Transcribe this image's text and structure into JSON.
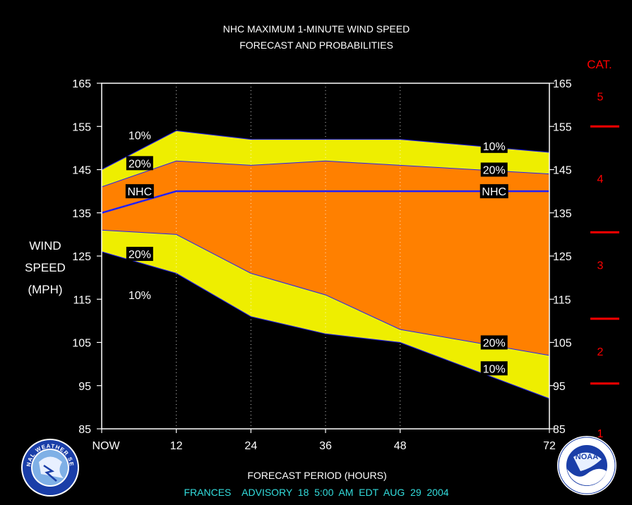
{
  "title_line1": "NHC MAXIMUM 1-MINUTE WIND SPEED",
  "title_line2": "FORECAST AND PROBABILITIES",
  "ylabel_lines": [
    "WIND",
    "SPEED",
    "(MPH)"
  ],
  "xlabel": "FORECAST PERIOD (HOURS)",
  "advisory_line": "FRANCES    ADVISORY  18  5:00  AM  EDT  AUG  29  2004",
  "cat_header": "CAT.",
  "nws_logo_text": "NATIONAL WEATHER SERVICE",
  "noaa_logo_text": "NOAA",
  "colors": {
    "background": "#000000",
    "plot_border": "#ffffff",
    "band_10pct": "#eeee00",
    "band_20pct": "#ff8000",
    "nhc_line": "#2020ff",
    "category_markers": "#ff0000",
    "advisory_text": "#33dddd"
  },
  "chart_data": {
    "type": "area",
    "x": [
      0,
      12,
      24,
      36,
      48,
      72
    ],
    "x_tick_labels": [
      "NOW",
      "12",
      "24",
      "36",
      "48",
      "72"
    ],
    "xlim": [
      0,
      72
    ],
    "ylim": [
      85,
      165
    ],
    "y_ticks": [
      85,
      95,
      105,
      115,
      125,
      135,
      145,
      155,
      165
    ],
    "grid": "vertical dotted at 12, 24, 36, 48",
    "series": [
      {
        "name": "10%",
        "role": "upper",
        "values": [
          145,
          154,
          152,
          152,
          152,
          149
        ]
      },
      {
        "name": "20%",
        "role": "upper",
        "values": [
          141,
          147,
          146,
          147,
          146,
          144
        ]
      },
      {
        "name": "NHC",
        "values": [
          135,
          140,
          140,
          140,
          140,
          140
        ]
      },
      {
        "name": "20%",
        "role": "lower",
        "values": [
          131,
          130,
          121,
          116,
          108,
          102
        ]
      },
      {
        "name": "10%",
        "role": "lower",
        "values": [
          126,
          121,
          111,
          107,
          105,
          92
        ]
      }
    ],
    "line_labels": [
      {
        "text": "10%",
        "series": 0,
        "x": 6,
        "y": 153
      },
      {
        "text": "20%",
        "series": 1,
        "x": 6,
        "y": 146.5
      },
      {
        "text": "NHC",
        "series": 2,
        "x": 6,
        "y": 140
      },
      {
        "text": "20%",
        "series": 3,
        "x": 6,
        "y": 125.5
      },
      {
        "text": "10%",
        "series": 4,
        "x": 6,
        "y": 116
      },
      {
        "text": "10%",
        "series": 0,
        "x": 63,
        "y": 150.5
      },
      {
        "text": "20%",
        "series": 1,
        "x": 63,
        "y": 145
      },
      {
        "text": "NHC",
        "series": 2,
        "x": 63,
        "y": 140
      },
      {
        "text": "20%",
        "series": 3,
        "x": 63,
        "y": 105
      },
      {
        "text": "10%",
        "series": 4,
        "x": 63,
        "y": 99
      }
    ],
    "categories_scale": {
      "labels": [
        {
          "cat": "5",
          "y": 162
        },
        {
          "cat": "4",
          "y": 143
        },
        {
          "cat": "3",
          "y": 123
        },
        {
          "cat": "2",
          "y": 103
        },
        {
          "cat": "1",
          "y": 84
        }
      ],
      "thresholds": [
        155,
        130.5,
        110.5,
        95.5
      ]
    }
  }
}
